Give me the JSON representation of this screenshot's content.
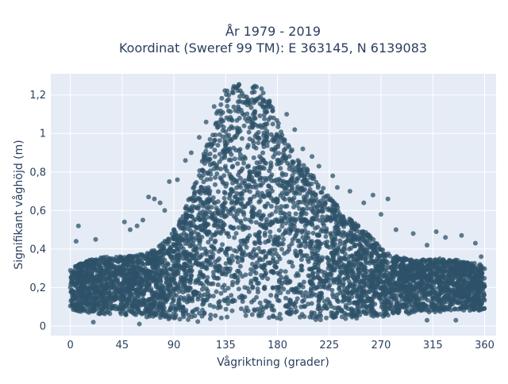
{
  "chart_data": {
    "type": "scatter",
    "title_lines": [
      "År 1979 - 2019",
      "Koordinat (Sweref 99 TM): E 363145, N 6139083"
    ],
    "xlabel": "Vågriktning (grader)",
    "ylabel": "Signifikant våghöjd (m)",
    "xlim": [
      -17,
      370
    ],
    "ylim": [
      -0.05,
      1.31
    ],
    "xticks": [
      0,
      45,
      90,
      135,
      180,
      225,
      270,
      315,
      360
    ],
    "yticks": [
      0,
      0.2,
      0.4,
      0.6,
      0.8,
      1,
      1.2
    ],
    "ytick_labels": [
      "0",
      "0,2",
      "0,4",
      "0,6",
      "0,8",
      "1",
      "1,2"
    ],
    "grid": true,
    "marker_color": "#2e5168",
    "background_color": "#e5ecf6",
    "envelope": {
      "x": [
        0,
        15,
        30,
        45,
        60,
        75,
        90,
        100,
        110,
        120,
        128,
        135,
        145,
        155,
        165,
        175,
        185,
        195,
        205,
        215,
        225,
        235,
        245,
        255,
        265,
        275,
        285,
        300,
        315,
        330,
        345,
        360
      ],
      "upper": [
        0.3,
        0.34,
        0.36,
        0.36,
        0.37,
        0.4,
        0.5,
        0.62,
        0.78,
        0.98,
        1.13,
        1.25,
        1.26,
        1.26,
        1.25,
        1.15,
        1.0,
        0.9,
        0.82,
        0.76,
        0.68,
        0.6,
        0.55,
        0.5,
        0.44,
        0.38,
        0.36,
        0.34,
        0.35,
        0.35,
        0.33,
        0.32
      ],
      "lower": [
        0.08,
        0.07,
        0.06,
        0.06,
        0.05,
        0.04,
        0.03,
        0.02,
        0.02,
        0.02,
        0.02,
        0.02,
        0.03,
        0.03,
        0.03,
        0.03,
        0.03,
        0.03,
        0.03,
        0.03,
        0.03,
        0.03,
        0.04,
        0.04,
        0.05,
        0.05,
        0.06,
        0.06,
        0.07,
        0.08,
        0.08,
        0.08
      ]
    },
    "outliers": [
      {
        "x": 7,
        "y": 0.52
      },
      {
        "x": 5,
        "y": 0.44
      },
      {
        "x": 22,
        "y": 0.45
      },
      {
        "x": 47,
        "y": 0.54
      },
      {
        "x": 52,
        "y": 0.5
      },
      {
        "x": 58,
        "y": 0.52
      },
      {
        "x": 68,
        "y": 0.67
      },
      {
        "x": 73,
        "y": 0.66
      },
      {
        "x": 78,
        "y": 0.64
      },
      {
        "x": 63,
        "y": 0.55
      },
      {
        "x": 82,
        "y": 0.6
      },
      {
        "x": 86,
        "y": 0.75
      },
      {
        "x": 93,
        "y": 0.76
      },
      {
        "x": 100,
        "y": 0.86
      },
      {
        "x": 105,
        "y": 0.9
      },
      {
        "x": 112,
        "y": 0.98
      },
      {
        "x": 118,
        "y": 1.06
      },
      {
        "x": 125,
        "y": 1.14
      },
      {
        "x": 188,
        "y": 1.1
      },
      {
        "x": 195,
        "y": 1.02
      },
      {
        "x": 202,
        "y": 0.92
      },
      {
        "x": 210,
        "y": 0.88
      },
      {
        "x": 216,
        "y": 0.83
      },
      {
        "x": 228,
        "y": 0.78
      },
      {
        "x": 232,
        "y": 0.72
      },
      {
        "x": 243,
        "y": 0.7
      },
      {
        "x": 255,
        "y": 0.64
      },
      {
        "x": 263,
        "y": 0.68
      },
      {
        "x": 276,
        "y": 0.66
      },
      {
        "x": 270,
        "y": 0.58
      },
      {
        "x": 283,
        "y": 0.5
      },
      {
        "x": 298,
        "y": 0.48
      },
      {
        "x": 310,
        "y": 0.42
      },
      {
        "x": 318,
        "y": 0.49
      },
      {
        "x": 326,
        "y": 0.46
      },
      {
        "x": 340,
        "y": 0.47
      },
      {
        "x": 352,
        "y": 0.43
      },
      {
        "x": 357,
        "y": 0.36
      },
      {
        "x": 20,
        "y": 0.02
      },
      {
        "x": 60,
        "y": 0.01
      },
      {
        "x": 310,
        "y": 0.03
      },
      {
        "x": 335,
        "y": 0.03
      }
    ]
  }
}
